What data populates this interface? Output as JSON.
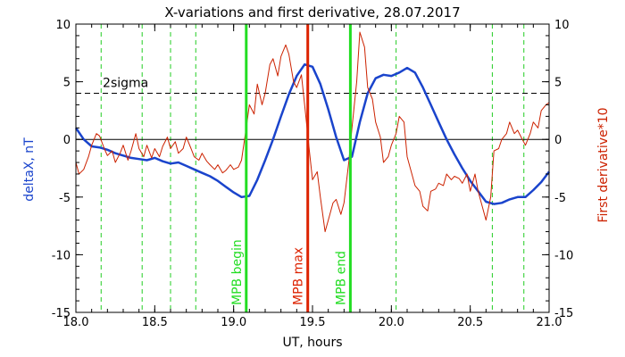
{
  "chart_data": {
    "type": "line",
    "title": "X-variations and first derivative, 28.07.2017",
    "xlabel": "UT, hours",
    "ylabel_left": "deltaX, nT",
    "ylabel_right": "First derivative*10",
    "xlim": [
      18.0,
      21.0
    ],
    "ylim_left": [
      -15,
      10
    ],
    "ylim_right": [
      -15,
      10
    ],
    "x_ticks": [
      "18.0",
      "18.5",
      "19.0",
      "19.5",
      "20.0",
      "20.5",
      "21.0"
    ],
    "y_ticks": [
      "10",
      "5",
      "0",
      "-5",
      "-10",
      "-15"
    ],
    "sigma": {
      "label": "2sigma",
      "value": 4.0
    },
    "zero_line": 0,
    "green_dashed_x": [
      18.16,
      18.42,
      18.6,
      18.76,
      20.03,
      20.64,
      20.84
    ],
    "markers": [
      {
        "label": "MPB begin",
        "x": 19.08,
        "color": "#22dd22"
      },
      {
        "label": "MPB max",
        "x": 19.47,
        "color": "#dd2200"
      },
      {
        "label": "MPB end",
        "x": 19.74,
        "color": "#22dd22"
      }
    ],
    "colors": {
      "deltaX": "#1a44cc",
      "derivative": "#cc2200",
      "axis_right": "#cc2200",
      "axis_left_label": "#1a44cc"
    },
    "series": [
      {
        "key": "deltaX",
        "axis": "left",
        "x": [
          18.0,
          18.05,
          18.1,
          18.15,
          18.2,
          18.25,
          18.3,
          18.35,
          18.4,
          18.45,
          18.5,
          18.55,
          18.6,
          18.65,
          18.7,
          18.75,
          18.8,
          18.85,
          18.9,
          18.95,
          19.0,
          19.05,
          19.1,
          19.15,
          19.2,
          19.25,
          19.3,
          19.35,
          19.4,
          19.45,
          19.5,
          19.55,
          19.6,
          19.65,
          19.7,
          19.75,
          19.8,
          19.85,
          19.9,
          19.95,
          20.0,
          20.05,
          20.1,
          20.15,
          20.2,
          20.25,
          20.3,
          20.35,
          20.4,
          20.45,
          20.5,
          20.55,
          20.6,
          20.65,
          20.7,
          20.75,
          20.8,
          20.85,
          20.9,
          20.95,
          21.0
        ],
        "values": [
          1.0,
          0.0,
          -0.6,
          -0.7,
          -0.9,
          -1.2,
          -1.4,
          -1.6,
          -1.7,
          -1.8,
          -1.6,
          -1.9,
          -2.1,
          -2.0,
          -2.3,
          -2.6,
          -2.9,
          -3.2,
          -3.6,
          -4.1,
          -4.6,
          -5.0,
          -4.9,
          -3.5,
          -1.8,
          0.0,
          2.0,
          3.9,
          5.5,
          6.5,
          6.3,
          4.8,
          2.6,
          0.2,
          -1.8,
          -1.5,
          1.5,
          4.0,
          5.3,
          5.6,
          5.5,
          5.8,
          6.2,
          5.8,
          4.5,
          3.0,
          1.5,
          0.0,
          -1.3,
          -2.5,
          -3.6,
          -4.5,
          -5.4,
          -5.6,
          -5.5,
          -5.2,
          -5.0,
          -5.0,
          -4.4,
          -3.7,
          -2.8
        ]
      },
      {
        "key": "derivative",
        "axis": "right",
        "x": [
          18.0,
          18.02,
          18.05,
          18.08,
          18.1,
          18.13,
          18.15,
          18.18,
          18.2,
          18.23,
          18.25,
          18.28,
          18.3,
          18.33,
          18.35,
          18.38,
          18.4,
          18.43,
          18.45,
          18.48,
          18.5,
          18.53,
          18.55,
          18.58,
          18.6,
          18.63,
          18.65,
          18.68,
          18.7,
          18.73,
          18.75,
          18.78,
          18.8,
          18.83,
          18.85,
          18.88,
          18.9,
          18.93,
          18.95,
          18.98,
          19.0,
          19.03,
          19.05,
          19.08,
          19.1,
          19.13,
          19.15,
          19.18,
          19.2,
          19.23,
          19.25,
          19.28,
          19.3,
          19.33,
          19.35,
          19.38,
          19.4,
          19.43,
          19.45,
          19.48,
          19.5,
          19.53,
          19.55,
          19.58,
          19.6,
          19.63,
          19.65,
          19.68,
          19.7,
          19.73,
          19.75,
          19.78,
          19.8,
          19.83,
          19.85,
          19.88,
          19.9,
          19.93,
          19.95,
          19.98,
          20.0,
          20.03,
          20.05,
          20.08,
          20.1,
          20.13,
          20.15,
          20.18,
          20.2,
          20.23,
          20.25,
          20.28,
          20.3,
          20.33,
          20.35,
          20.38,
          20.4,
          20.43,
          20.45,
          20.48,
          20.5,
          20.53,
          20.55,
          20.58,
          20.6,
          20.63,
          20.65,
          20.68,
          20.7,
          20.73,
          20.75,
          20.78,
          20.8,
          20.83,
          20.85,
          20.88,
          20.9,
          20.93,
          20.95,
          20.98,
          21.0
        ],
        "values": [
          -2.0,
          -3.0,
          -2.6,
          -1.5,
          -0.5,
          0.5,
          0.3,
          -0.8,
          -1.4,
          -1.0,
          -2.0,
          -1.2,
          -0.5,
          -1.8,
          -1.0,
          0.5,
          -0.8,
          -1.5,
          -0.5,
          -1.6,
          -0.8,
          -1.5,
          -0.6,
          0.2,
          -0.8,
          -0.2,
          -1.2,
          -0.8,
          0.2,
          -0.8,
          -1.5,
          -1.8,
          -1.2,
          -1.9,
          -2.2,
          -2.6,
          -2.2,
          -2.9,
          -2.7,
          -2.2,
          -2.6,
          -2.4,
          -1.8,
          1.0,
          3.0,
          2.2,
          4.8,
          3.0,
          4.0,
          6.5,
          7.0,
          5.5,
          7.2,
          8.2,
          7.4,
          5.0,
          4.5,
          5.6,
          3.0,
          -1.0,
          -3.5,
          -2.8,
          -5.0,
          -8.0,
          -7.0,
          -5.5,
          -5.2,
          -6.5,
          -5.5,
          -2.0,
          1.0,
          5.0,
          9.3,
          8.0,
          4.5,
          3.5,
          1.5,
          0.2,
          -2.0,
          -1.5,
          -0.5,
          0.5,
          2.0,
          1.5,
          -1.5,
          -3.0,
          -4.0,
          -4.5,
          -5.8,
          -6.2,
          -4.5,
          -4.3,
          -3.8,
          -4.0,
          -3.0,
          -3.5,
          -3.2,
          -3.4,
          -3.8,
          -3.0,
          -4.5,
          -3.0,
          -4.5,
          -6.0,
          -7.0,
          -5.0,
          -1.0,
          -0.8,
          0.0,
          0.5,
          1.5,
          0.5,
          0.8,
          0.0,
          -0.5,
          0.5,
          1.5,
          1.0,
          2.5,
          3.0,
          3.2
        ]
      }
    ]
  }
}
